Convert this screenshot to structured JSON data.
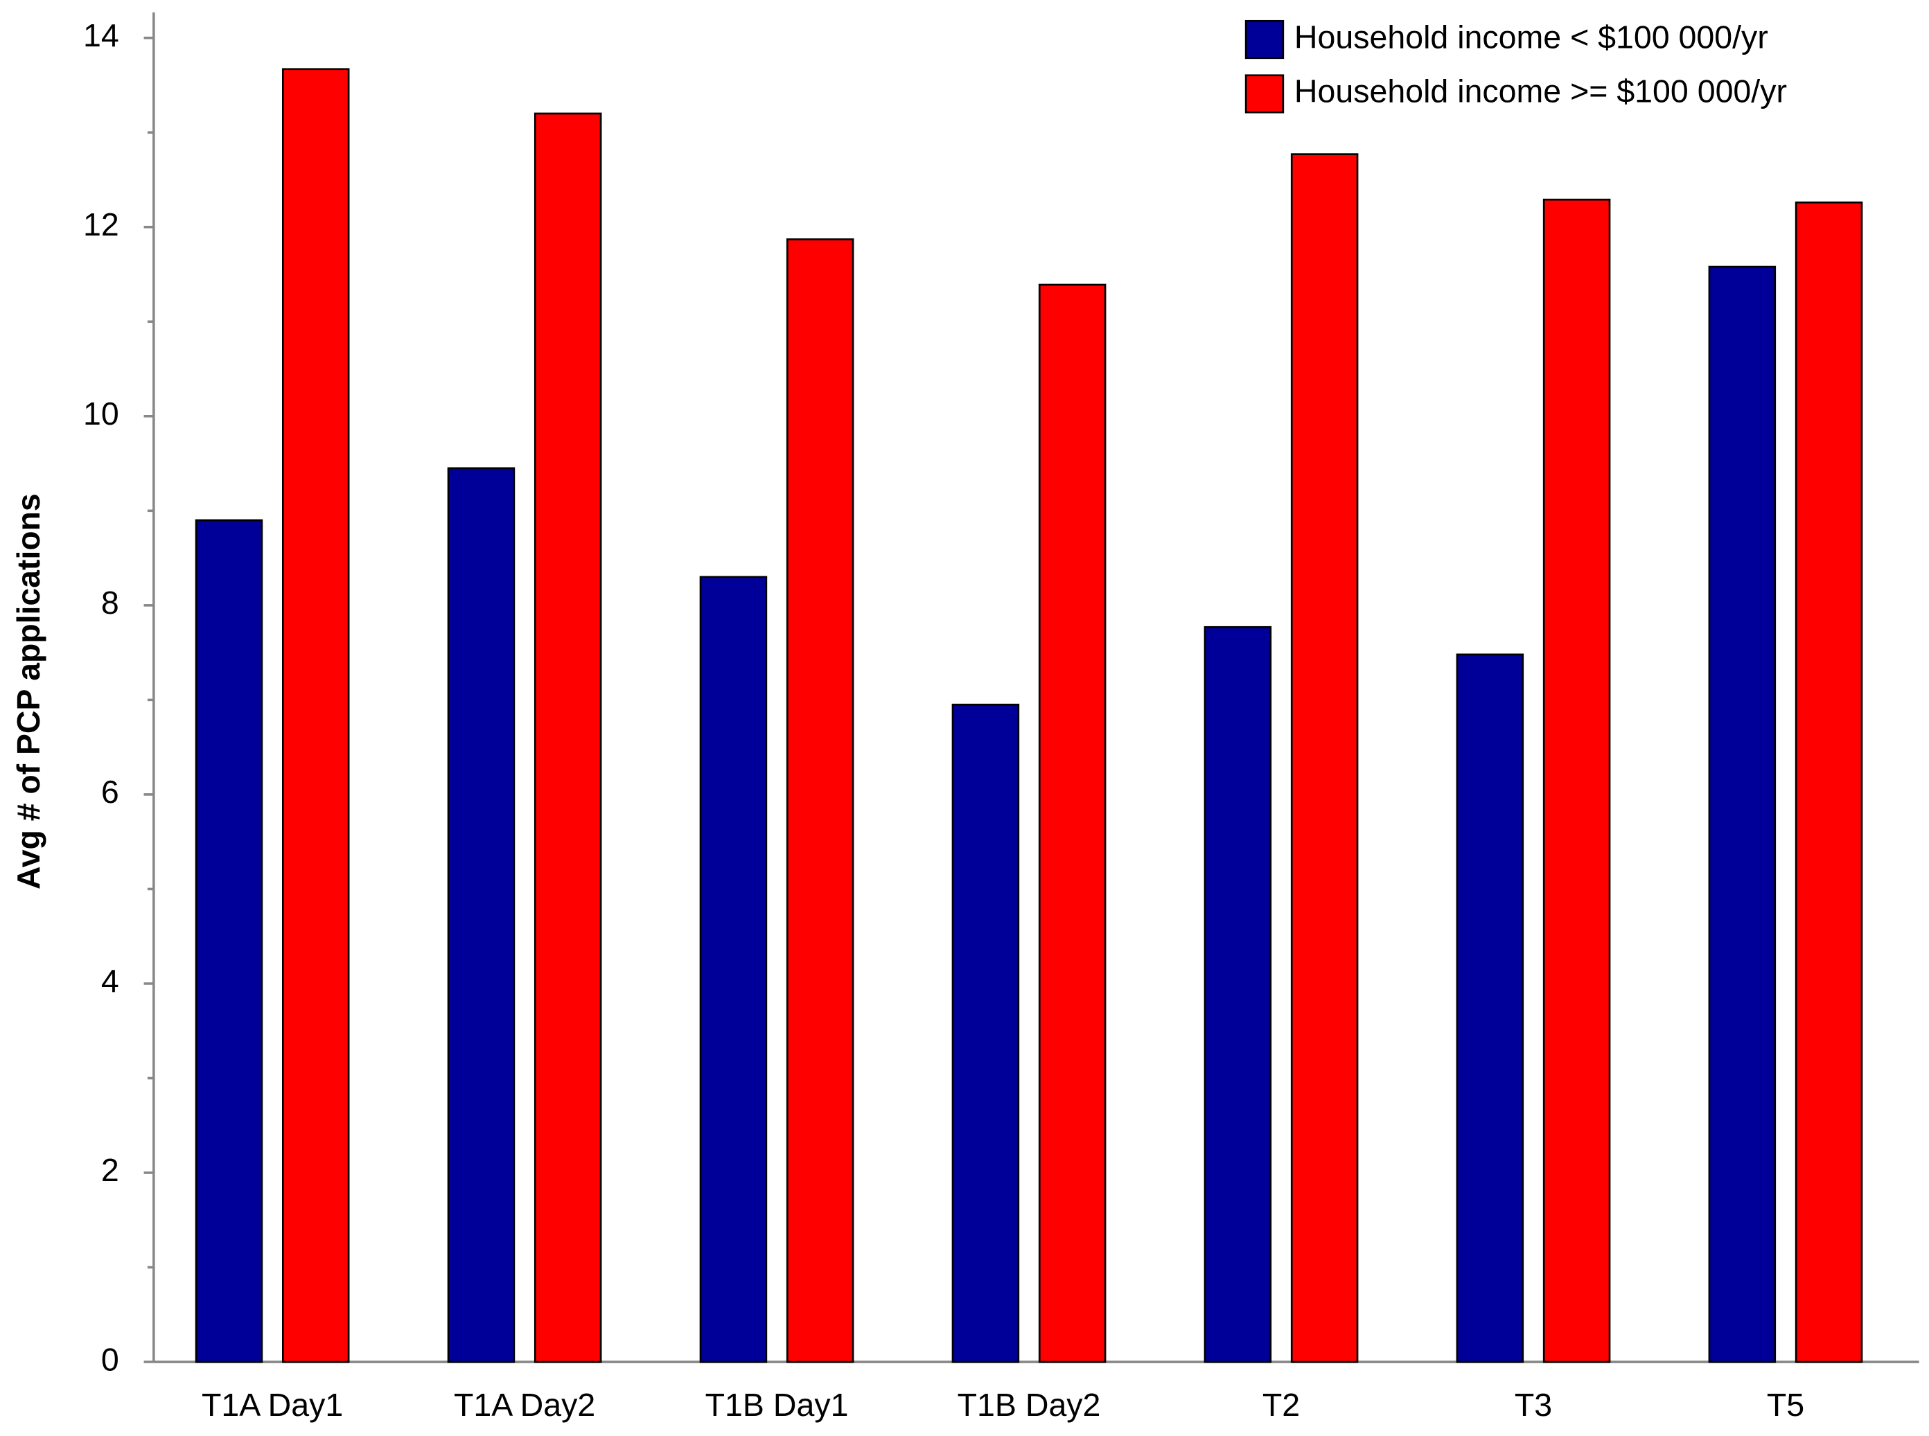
{
  "chart_data": {
    "type": "bar",
    "y_label": "Avg # of PCP applications",
    "categories": [
      "T1A Day1",
      "T1A Day2",
      "T1B Day1",
      "T1B Day2",
      "T2",
      "T3",
      "T5"
    ],
    "series": [
      {
        "name": "Household income < $100 000/yr",
        "color": "#000099",
        "values": [
          8.9,
          9.45,
          8.3,
          6.95,
          7.77,
          7.48,
          11.58
        ]
      },
      {
        "name": "Household income >= $100 000/yr",
        "color": "#ff0000",
        "values": [
          13.67,
          13.2,
          11.87,
          11.39,
          12.77,
          12.29,
          12.26
        ]
      }
    ],
    "ylim": [
      0,
      14.27
    ],
    "yticks": [
      0,
      2,
      4,
      6,
      8,
      10,
      12,
      14
    ],
    "minor_yticks": [
      1,
      3,
      5,
      7,
      9,
      11,
      13
    ],
    "legend": "top-right"
  }
}
